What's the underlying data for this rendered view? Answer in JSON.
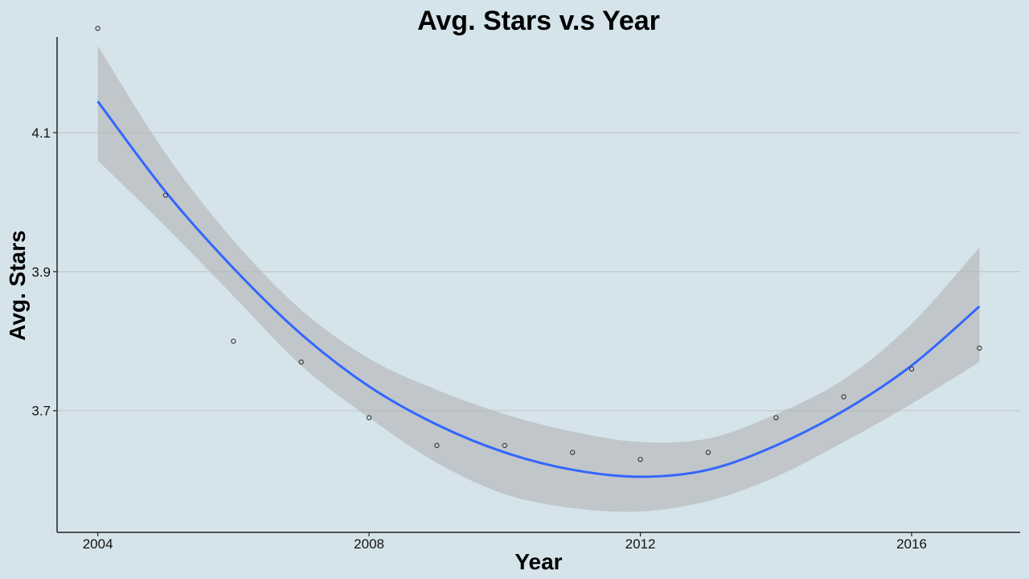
{
  "chart_data": {
    "type": "scatter",
    "title": "Avg. Stars v.s Year",
    "xlabel": "Year",
    "ylabel": "Avg. Stars",
    "xlim": [
      2003.4,
      2017.6
    ],
    "ylim": [
      3.525,
      4.285
    ],
    "x_ticks": [
      2004,
      2008,
      2012,
      2016
    ],
    "y_ticks": [
      3.7,
      3.9,
      4.1
    ],
    "x_tick_labels": [
      "2004",
      "2008",
      "2012",
      "2016"
    ],
    "y_tick_labels": [
      "3.7",
      "3.9",
      "4.1"
    ],
    "grid": "horizontal major lines",
    "legend": "none",
    "points": {
      "x": [
        2004,
        2005,
        2006,
        2007,
        2008,
        2009,
        2010,
        2011,
        2012,
        2013,
        2014,
        2015,
        2016,
        2017
      ],
      "y": [
        4.25,
        4.01,
        3.8,
        3.77,
        3.69,
        3.65,
        3.65,
        3.64,
        3.63,
        3.64,
        3.69,
        3.72,
        3.76,
        3.79
      ]
    },
    "trend": {
      "method": "quadratic smooth with confidence band",
      "x": [
        2004,
        2005,
        2006,
        2007,
        2008,
        2009,
        2010,
        2011,
        2012,
        2013,
        2014,
        2015,
        2016,
        2017
      ],
      "fit": [
        4.145,
        4.015,
        3.905,
        3.81,
        3.735,
        3.68,
        3.64,
        3.615,
        3.605,
        3.615,
        3.65,
        3.7,
        3.765,
        3.85
      ],
      "lower": [
        4.06,
        3.965,
        3.865,
        3.765,
        3.69,
        3.625,
        3.58,
        3.56,
        3.555,
        3.57,
        3.605,
        3.655,
        3.71,
        3.77
      ],
      "upper": [
        4.225,
        4.07,
        3.945,
        3.845,
        3.775,
        3.73,
        3.695,
        3.67,
        3.655,
        3.66,
        3.695,
        3.745,
        3.825,
        3.935
      ]
    },
    "colors": {
      "background": "#d5e4eb",
      "line": "#3366ff",
      "band": "#b3b3b3",
      "grid": "#c8cfd2",
      "point_stroke": "#333333",
      "axis": "#222222"
    }
  }
}
